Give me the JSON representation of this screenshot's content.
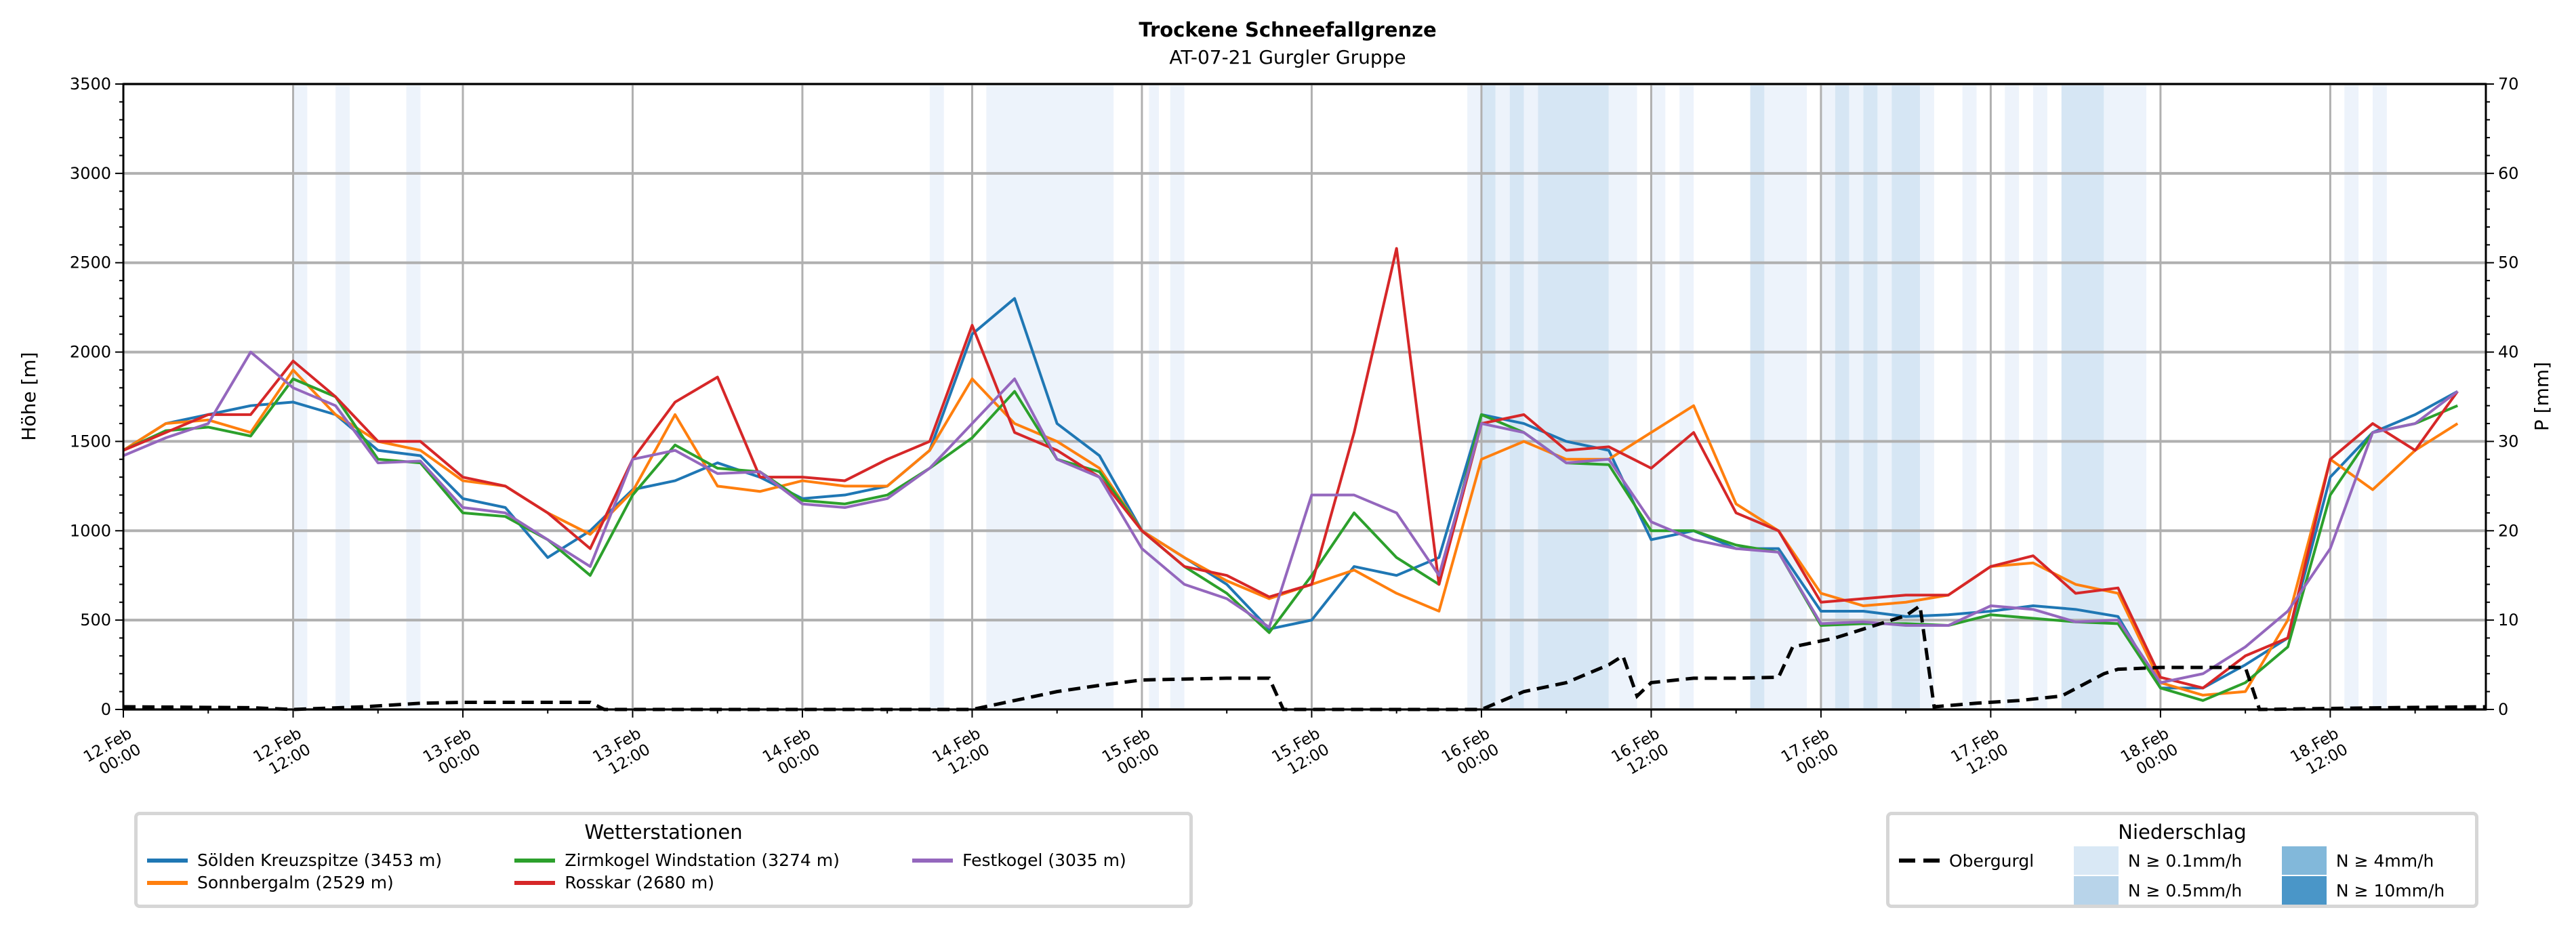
{
  "chart_data": {
    "type": "line",
    "title": "Trockene Schneefallgrenze",
    "subtitle": "AT-07-21 Gurgler Gruppe",
    "ylabel": "Höhe [m]",
    "ylabel_right": "P [mm]",
    "ylim": [
      0,
      3500
    ],
    "ylim_right": [
      0,
      70
    ],
    "yticks": [
      "0",
      "500",
      "1000",
      "1500",
      "2000",
      "2500",
      "3000",
      "3500"
    ],
    "yticks_right": [
      "0",
      "10",
      "20",
      "30",
      "40",
      "50",
      "60",
      "70"
    ],
    "x_unit": "hours since 12.Feb 00:00",
    "xlim": [
      0,
      167
    ],
    "xticks": [
      {
        "l1": "12.Feb",
        "l2": "00:00"
      },
      {
        "l1": "12.Feb",
        "l2": "12:00"
      },
      {
        "l1": "13.Feb",
        "l2": "00:00"
      },
      {
        "l1": "13.Feb",
        "l2": "12:00"
      },
      {
        "l1": "14.Feb",
        "l2": "00:00"
      },
      {
        "l1": "14.Feb",
        "l2": "12:00"
      },
      {
        "l1": "15.Feb",
        "l2": "00:00"
      },
      {
        "l1": "15.Feb",
        "l2": "12:00"
      },
      {
        "l1": "16.Feb",
        "l2": "00:00"
      },
      {
        "l1": "16.Feb",
        "l2": "12:00"
      },
      {
        "l1": "17.Feb",
        "l2": "00:00"
      },
      {
        "l1": "17.Feb",
        "l2": "12:00"
      },
      {
        "l1": "18.Feb",
        "l2": "00:00"
      },
      {
        "l1": "18.Feb",
        "l2": "12:00"
      }
    ],
    "grid": true,
    "x_step_hours": 3,
    "series": [
      {
        "name": "Sölden Kreuzspitze (3453 m)",
        "color": "#1f77b4",
        "values": [
          1450,
          1600,
          1650,
          1700,
          1720,
          1650,
          1450,
          1420,
          1180,
          1130,
          850,
          1000,
          1230,
          1280,
          1380,
          1300,
          1180,
          1200,
          1250,
          1450,
          2100,
          2300,
          1600,
          1420,
          1000,
          850,
          700,
          450,
          500,
          800,
          750,
          850,
          1650,
          1600,
          1500,
          1450,
          950,
          1000,
          900,
          900,
          550,
          550,
          520,
          530,
          550,
          580,
          560,
          520,
          120,
          120,
          250,
          400,
          1300,
          1550,
          1650,
          1780
        ]
      },
      {
        "name": "Sonnbergalm (2529 m)",
        "color": "#ff7f0e",
        "values": [
          1450,
          1600,
          1620,
          1550,
          1900,
          1650,
          1500,
          1450,
          1280,
          1250,
          1100,
          980,
          1220,
          1650,
          1250,
          1220,
          1280,
          1250,
          1250,
          1450,
          1850,
          1600,
          1500,
          1350,
          1000,
          850,
          720,
          620,
          700,
          780,
          650,
          550,
          1400,
          1500,
          1400,
          1400,
          1550,
          1700,
          1150,
          1000,
          650,
          580,
          600,
          640,
          800,
          820,
          700,
          650,
          150,
          80,
          100,
          500,
          1400,
          1230,
          1450,
          1600
        ]
      },
      {
        "name": "Zirmkogel Windstation (3274 m)",
        "color": "#2ca02c",
        "values": [
          1450,
          1560,
          1580,
          1530,
          1850,
          1750,
          1400,
          1380,
          1100,
          1080,
          950,
          750,
          1200,
          1480,
          1350,
          1330,
          1170,
          1150,
          1200,
          1350,
          1520,
          1780,
          1400,
          1330,
          1000,
          800,
          650,
          430,
          750,
          1100,
          850,
          700,
          1650,
          1550,
          1380,
          1370,
          1000,
          1000,
          920,
          880,
          470,
          480,
          480,
          470,
          530,
          510,
          490,
          480,
          120,
          50,
          150,
          350,
          1200,
          1550,
          1600,
          1700
        ]
      },
      {
        "name": "Rosskar (2680 m)",
        "color": "#d62728",
        "values": [
          1450,
          1550,
          1650,
          1650,
          1950,
          1750,
          1500,
          1500,
          1300,
          1250,
          1100,
          900,
          1400,
          1720,
          1860,
          1300,
          1300,
          1280,
          1400,
          1500,
          2150,
          1550,
          1450,
          1300,
          1000,
          800,
          750,
          630,
          700,
          1550,
          2580,
          700,
          1600,
          1650,
          1450,
          1470,
          1350,
          1550,
          1100,
          1000,
          600,
          620,
          640,
          640,
          800,
          860,
          650,
          680,
          180,
          120,
          300,
          400,
          1400,
          1600,
          1450,
          1780
        ]
      },
      {
        "name": "Festkogel (3035 m)",
        "color": "#9467bd",
        "values": [
          1420,
          1520,
          1600,
          2000,
          1800,
          1700,
          1380,
          1390,
          1130,
          1100,
          950,
          800,
          1400,
          1450,
          1320,
          1330,
          1150,
          1130,
          1180,
          1350,
          1600,
          1850,
          1400,
          1300,
          900,
          700,
          620,
          460,
          1200,
          1200,
          1100,
          750,
          1600,
          1550,
          1380,
          1400,
          1050,
          950,
          900,
          880,
          480,
          490,
          470,
          470,
          580,
          560,
          490,
          500,
          150,
          200,
          350,
          550,
          900,
          1550,
          1600,
          1780
        ]
      }
    ],
    "precip_series": {
      "name": "Obergurgl",
      "unit": "mm",
      "color": "#000000",
      "points": [
        [
          0,
          0.3
        ],
        [
          9,
          0.2
        ],
        [
          12,
          0
        ],
        [
          17,
          0.3
        ],
        [
          21,
          0.7
        ],
        [
          24,
          0.8
        ],
        [
          33,
          0.8
        ],
        [
          34,
          0
        ],
        [
          60,
          0
        ],
        [
          63,
          1
        ],
        [
          66,
          2
        ],
        [
          69,
          2.7
        ],
        [
          72,
          3.3
        ],
        [
          78,
          3.5
        ],
        [
          81,
          3.5
        ],
        [
          82,
          0
        ],
        [
          96,
          0
        ],
        [
          99,
          2
        ],
        [
          102,
          3
        ],
        [
          105,
          5
        ],
        [
          106,
          6
        ],
        [
          107,
          1.5
        ],
        [
          108,
          3
        ],
        [
          111,
          3.5
        ],
        [
          114,
          3.5
        ],
        [
          117,
          3.6
        ],
        [
          118,
          7
        ],
        [
          121,
          8
        ],
        [
          124,
          9.5
        ],
        [
          126,
          10.5
        ],
        [
          127,
          11.6
        ],
        [
          128,
          0.3
        ],
        [
          131,
          0.7
        ],
        [
          134,
          1
        ],
        [
          137,
          1.5
        ],
        [
          140,
          4
        ],
        [
          141,
          4.5
        ],
        [
          144,
          4.7
        ],
        [
          150,
          4.7
        ],
        [
          151,
          0
        ],
        [
          160,
          0.2
        ],
        [
          167,
          0.3
        ]
      ]
    },
    "precip_bands": [
      [
        12,
        13,
        1
      ],
      [
        15,
        16,
        1
      ],
      [
        20,
        21,
        1
      ],
      [
        57,
        58,
        1
      ],
      [
        61,
        70,
        1
      ],
      [
        72.5,
        73.2,
        1
      ],
      [
        74,
        75,
        1
      ],
      [
        95,
        96,
        1
      ],
      [
        96,
        97,
        2
      ],
      [
        97,
        98,
        1
      ],
      [
        98,
        99,
        2
      ],
      [
        99,
        100,
        1
      ],
      [
        100,
        105,
        2
      ],
      [
        105,
        107,
        1
      ],
      [
        108,
        109,
        1
      ],
      [
        110,
        111,
        1
      ],
      [
        115,
        116,
        2
      ],
      [
        116,
        119,
        1
      ],
      [
        120,
        121,
        1
      ],
      [
        121,
        122,
        2
      ],
      [
        122,
        123,
        1
      ],
      [
        123,
        124,
        2
      ],
      [
        124,
        125,
        1
      ],
      [
        125,
        127,
        2
      ],
      [
        127,
        128,
        1
      ],
      [
        130,
        131,
        1
      ],
      [
        133,
        134,
        1
      ],
      [
        135,
        136,
        1
      ],
      [
        137,
        140,
        2
      ],
      [
        140,
        143,
        1
      ],
      [
        157,
        158,
        1
      ],
      [
        159,
        160,
        1
      ]
    ],
    "legend_stations": {
      "title": "Wetterstationen",
      "placement": "bottom-left"
    },
    "legend_precip": {
      "title": "Niederschlag",
      "placement": "bottom-right",
      "line_label": "Obergurgl",
      "levels": [
        {
          "label": "N ≥ 0.1mm/h",
          "color": "#d9e8f5"
        },
        {
          "label": "N ≥ 0.5mm/h",
          "color": "#b8d4ea"
        },
        {
          "label": "N ≥ 4mm/h",
          "color": "#82b8da"
        },
        {
          "label": "N ≥ 10mm/h",
          "color": "#4a96c8"
        }
      ],
      "band_colors": [
        "#edf3fb",
        "#d6e6f4"
      ]
    }
  }
}
